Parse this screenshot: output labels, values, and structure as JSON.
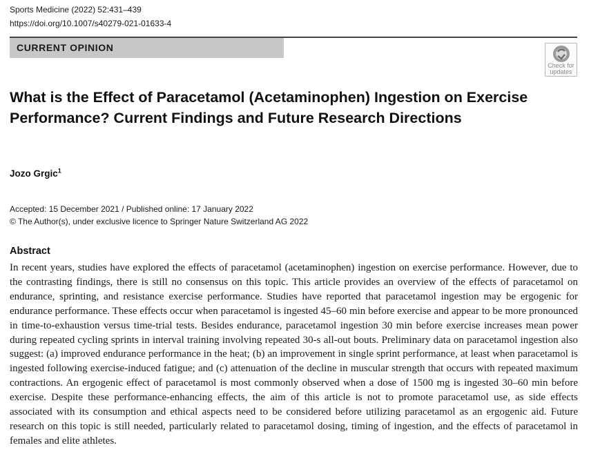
{
  "header": {
    "citation": "Sports Medicine (2022) 52:431–439",
    "doi": "https://doi.org/10.1007/s40279-021-01633-4"
  },
  "banner": {
    "label": "CURRENT OPINION"
  },
  "badge": {
    "line1": "Check for",
    "line2": "updates",
    "icon": "check-for-updates-icon"
  },
  "article": {
    "title": "What is the Effect of Paracetamol (Acetaminophen) Ingestion on Exercise Performance? Current Findings and Future Research Directions",
    "author_name": "Jozo Grgic",
    "author_affiliation_mark": "1",
    "dates": "Accepted: 15 December 2021 / Published online: 17 January 2022",
    "copyright": "© The Author(s), under exclusive licence to Springer Nature Switzerland AG 2022"
  },
  "abstract": {
    "heading": "Abstract",
    "text": "In recent years, studies have explored the effects of paracetamol (acetaminophen) ingestion on exercise performance. However, due to the contrasting findings, there is still no consensus on this topic. This article provides an overview of the effects of paracetamol on endurance, sprinting, and resistance exercise performance. Studies have reported that paracetamol ingestion may be ergogenic for endurance performance. These effects occur when paracetamol is ingested 45–60 min before exercise and appear to be more pronounced in time-to-exhaustion versus time-trial tests. Besides endurance, paracetamol ingestion 30 min before exercise increases mean power during repeated cycling sprints in interval training involving repeated 30-s all-out bouts. Preliminary data on paracetamol ingestion also suggest: (a) improved endurance performance in the heat; (b) an improvement in single sprint performance, at least when paracetamol is ingested following exercise-induced fatigue; and (c) attenuation of the decline in muscular strength that occurs with repeated maximum contractions. An ergogenic effect of paracetamol is most commonly observed when a dose of 1500 mg is ingested 30–60 min before exercise. Despite these performance-enhancing effects, the aim of this article is not to promote paracetamol use, as side effects associated with its consumption and ethical aspects need to be considered before utilizing paracetamol as an ergogenic aid. Future research on this topic is still needed, particularly related to paracetamol dosing, timing of ingestion, and the effects of paracetamol in females and elite athletes."
  }
}
